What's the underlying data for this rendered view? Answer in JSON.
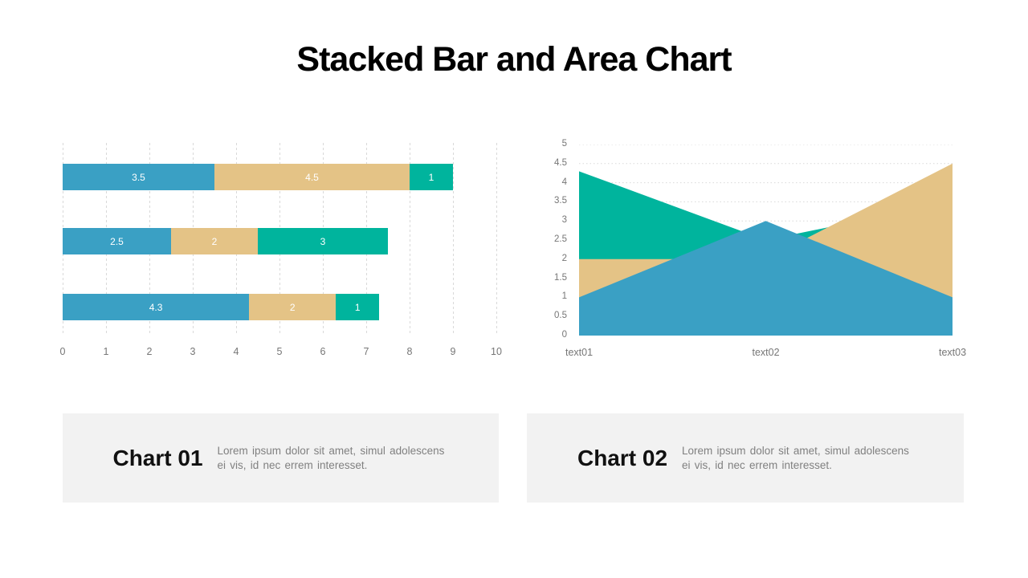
{
  "title": "Stacked Bar and Area Chart",
  "colors": {
    "blue": "#3AA0C4",
    "tan": "#E4C386",
    "green": "#00B49D",
    "gridline": "#D9D9D9",
    "axis_text": "#767676",
    "caption_box_bg": "#F2F2F2",
    "bar_value_text": "#FFFFFF",
    "title_text": "#000000"
  },
  "chart_data": [
    {
      "type": "bar",
      "orientation": "horizontal",
      "stacked": true,
      "series": [
        {
          "name": "blue",
          "color": "#3AA0C4",
          "values": [
            3.5,
            2.5,
            4.3
          ]
        },
        {
          "name": "tan",
          "color": "#E4C386",
          "values": [
            4.5,
            2.0,
            2.0
          ]
        },
        {
          "name": "green",
          "color": "#00B49D",
          "values": [
            1.0,
            3.0,
            1.0
          ]
        }
      ],
      "bar_totals": [
        9,
        7.5,
        7.3
      ],
      "value_labels": [
        [
          "3.5",
          "4.5",
          "1"
        ],
        [
          "2.5",
          "2",
          "3"
        ],
        [
          "4.3",
          "2",
          "1"
        ]
      ],
      "x_ticks": [
        "0",
        "1",
        "2",
        "3",
        "4",
        "5",
        "6",
        "7",
        "8",
        "9",
        "10"
      ],
      "xlim": [
        0,
        10
      ],
      "grid": "vertical-dashed",
      "legend": "none"
    },
    {
      "type": "area",
      "overlapping": true,
      "x_categories": [
        "text01",
        "text02",
        "text03"
      ],
      "series": [
        {
          "name": "green",
          "color": "#00B49D",
          "values": [
            4.3,
            2.5,
            3.5
          ]
        },
        {
          "name": "tan",
          "color": "#E4C386",
          "values": [
            2.0,
            2.0,
            4.5
          ]
        },
        {
          "name": "blue",
          "color": "#3AA0C4",
          "values": [
            1.0,
            3.0,
            1.0
          ]
        }
      ],
      "ylim": [
        0,
        5
      ],
      "y_ticks": [
        "0",
        "0.5",
        "1",
        "1.5",
        "2",
        "2.5",
        "3",
        "3.5",
        "4",
        "4.5",
        "5"
      ],
      "grid": "horizontal-dotted",
      "legend": "none"
    }
  ],
  "captions": [
    {
      "heading": "Chart 01",
      "body": "Lorem ipsum dolor sit amet, simul adolescens ei vis, id nec errem interesset."
    },
    {
      "heading": "Chart 02",
      "body": "Lorem ipsum dolor sit amet, simul adolescens ei vis, id nec errem interesset."
    }
  ]
}
